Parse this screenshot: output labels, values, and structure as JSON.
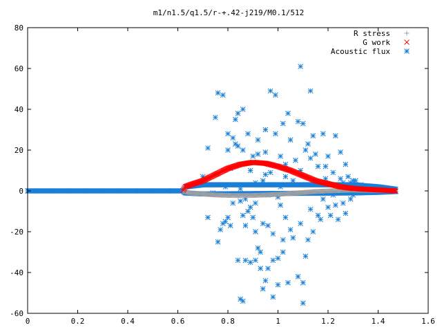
{
  "chart_data": {
    "type": "scatter",
    "title": "m1/n1.5/q1.5/r-+.42-j219/M0.1/512",
    "xlabel": "",
    "ylabel": "",
    "xlim": [
      0,
      1.6
    ],
    "ylim": [
      -60,
      80
    ],
    "x_ticks": [
      "0",
      "0.2",
      "0.4",
      "0.6",
      "0.8",
      "1",
      "1.2",
      "1.4",
      "1.6"
    ],
    "y_ticks": [
      "-60",
      "-40",
      "-20",
      "0",
      "20",
      "40",
      "60",
      "80"
    ],
    "grid": false,
    "legend_position": "top-right",
    "series": [
      {
        "name": "R stress",
        "marker": "+",
        "color": "#a0a0a0",
        "curve": {
          "x": [
            0.0,
            0.62,
            0.63,
            0.65,
            0.7,
            0.75,
            0.8,
            0.85,
            0.9,
            0.95,
            1.0,
            1.05,
            1.1,
            1.15,
            1.2,
            1.25,
            1.3,
            1.35,
            1.4,
            1.47
          ],
          "y": [
            0.0,
            0.0,
            -0.5,
            -1.0,
            -1.5,
            -2.0,
            -2.2,
            -2.3,
            -2.2,
            -2.0,
            -1.7,
            -1.2,
            -0.8,
            -0.3,
            0.0,
            0.2,
            0.4,
            0.3,
            0.2,
            0.0
          ]
        }
      },
      {
        "name": "G work",
        "marker": "x",
        "color": "#ff0000",
        "curve": {
          "x": [
            0.0,
            0.62,
            0.63,
            0.65,
            0.7,
            0.75,
            0.8,
            0.85,
            0.9,
            0.95,
            1.0,
            1.05,
            1.1,
            1.15,
            1.2,
            1.25,
            1.3,
            1.35,
            1.4,
            1.47
          ],
          "y": [
            0.0,
            0.0,
            2.0,
            3.0,
            5.0,
            8.0,
            11.0,
            13.0,
            14.0,
            13.5,
            12.0,
            10.0,
            7.5,
            5.0,
            3.5,
            2.0,
            1.2,
            0.8,
            0.5,
            0.0
          ]
        }
      },
      {
        "name": "Acoustic flux",
        "marker": "*",
        "color": "#1a7fd8",
        "band": {
          "x": [
            0.0,
            0.62,
            0.63,
            0.7,
            1.3,
            1.4,
            1.47
          ],
          "lo": [
            0.0,
            0.0,
            -1.0,
            -1.5,
            -1.0,
            -0.7,
            -0.3
          ],
          "hi": [
            0.0,
            0.0,
            2.0,
            3.0,
            3.0,
            2.0,
            0.8
          ]
        },
        "points": [
          [
            0.68,
            3
          ],
          [
            0.7,
            7
          ],
          [
            0.72,
            21
          ],
          [
            0.72,
            -13
          ],
          [
            0.74,
            -1
          ],
          [
            0.75,
            36
          ],
          [
            0.76,
            -25
          ],
          [
            0.76,
            48
          ],
          [
            0.77,
            -19
          ],
          [
            0.78,
            47
          ],
          [
            0.78,
            -16
          ],
          [
            0.79,
            2
          ],
          [
            0.79,
            -15
          ],
          [
            0.8,
            28
          ],
          [
            0.8,
            20
          ],
          [
            0.8,
            -13
          ],
          [
            0.81,
            11
          ],
          [
            0.81,
            -17
          ],
          [
            0.82,
            26
          ],
          [
            0.82,
            -6
          ],
          [
            0.83,
            23
          ],
          [
            0.83,
            35
          ],
          [
            0.84,
            22
          ],
          [
            0.84,
            38
          ],
          [
            0.84,
            -34
          ],
          [
            0.85,
            -5
          ],
          [
            0.85,
            1
          ],
          [
            0.85,
            -53
          ],
          [
            0.86,
            40
          ],
          [
            0.86,
            -54
          ],
          [
            0.86,
            -12
          ],
          [
            0.86,
            20
          ],
          [
            0.87,
            -4
          ],
          [
            0.87,
            -17
          ],
          [
            0.87,
            -34
          ],
          [
            0.88,
            -10
          ],
          [
            0.88,
            28
          ],
          [
            0.89,
            -35
          ],
          [
            0.89,
            10
          ],
          [
            0.89,
            -8
          ],
          [
            0.9,
            -13
          ],
          [
            0.9,
            17
          ],
          [
            0.91,
            -20
          ],
          [
            0.91,
            4
          ],
          [
            0.91,
            -34
          ],
          [
            0.91,
            -6
          ],
          [
            0.92,
            -28
          ],
          [
            0.92,
            18
          ],
          [
            0.92,
            25
          ],
          [
            0.93,
            -38
          ],
          [
            0.93,
            -30
          ],
          [
            0.94,
            5
          ],
          [
            0.94,
            -16
          ],
          [
            0.94,
            -48
          ],
          [
            0.95,
            19
          ],
          [
            0.95,
            -44
          ],
          [
            0.95,
            30
          ],
          [
            0.95,
            8
          ],
          [
            0.96,
            -17
          ],
          [
            0.96,
            -2
          ],
          [
            0.96,
            -38
          ],
          [
            0.97,
            9
          ],
          [
            0.97,
            49
          ],
          [
            0.98,
            -34
          ],
          [
            0.98,
            -21
          ],
          [
            0.98,
            -52
          ],
          [
            0.99,
            28
          ],
          [
            0.99,
            47
          ],
          [
            1.0,
            -33
          ],
          [
            1.0,
            -46
          ],
          [
            1.0,
            -3
          ],
          [
            1.01,
            17
          ],
          [
            1.01,
            -7
          ],
          [
            1.01,
            2
          ],
          [
            1.02,
            -30
          ],
          [
            1.02,
            -24
          ],
          [
            1.02,
            33
          ],
          [
            1.03,
            7
          ],
          [
            1.03,
            -13
          ],
          [
            1.03,
            13
          ],
          [
            1.04,
            38
          ],
          [
            1.04,
            -45
          ],
          [
            1.05,
            25
          ],
          [
            1.05,
            -19
          ],
          [
            1.06,
            5
          ],
          [
            1.06,
            -23
          ],
          [
            1.07,
            15
          ],
          [
            1.08,
            34
          ],
          [
            1.08,
            -42
          ],
          [
            1.09,
            -16
          ],
          [
            1.09,
            10
          ],
          [
            1.09,
            61
          ],
          [
            1.1,
            33
          ],
          [
            1.1,
            -55
          ],
          [
            1.1,
            -45
          ],
          [
            1.11,
            -32
          ],
          [
            1.11,
            20
          ],
          [
            1.12,
            23
          ],
          [
            1.12,
            -24
          ],
          [
            1.13,
            49
          ],
          [
            1.13,
            -9
          ],
          [
            1.13,
            16
          ],
          [
            1.14,
            -20
          ],
          [
            1.14,
            27
          ],
          [
            1.15,
            18
          ],
          [
            1.15,
            5
          ],
          [
            1.16,
            -12
          ],
          [
            1.16,
            12
          ],
          [
            1.17,
            -14
          ],
          [
            1.17,
            4
          ],
          [
            1.18,
            28
          ],
          [
            1.18,
            -4
          ],
          [
            1.19,
            6
          ],
          [
            1.19,
            12
          ],
          [
            1.2,
            17
          ],
          [
            1.2,
            -8
          ],
          [
            1.21,
            3
          ],
          [
            1.21,
            -12
          ],
          [
            1.22,
            9
          ],
          [
            1.22,
            -2
          ],
          [
            1.23,
            27
          ],
          [
            1.23,
            -7
          ],
          [
            1.24,
            2
          ],
          [
            1.24,
            -14
          ],
          [
            1.25,
            6
          ],
          [
            1.25,
            19
          ],
          [
            1.26,
            4
          ],
          [
            1.26,
            -6
          ],
          [
            1.27,
            13
          ],
          [
            1.27,
            -11
          ],
          [
            1.28,
            7
          ],
          [
            1.29,
            -4
          ],
          [
            1.29,
            4
          ],
          [
            1.3,
            5
          ],
          [
            1.3,
            -2
          ],
          [
            1.31,
            5
          ],
          [
            1.32,
            -1
          ],
          [
            1.33,
            3
          ],
          [
            1.34,
            2
          ],
          [
            1.36,
            1
          ]
        ]
      }
    ]
  }
}
